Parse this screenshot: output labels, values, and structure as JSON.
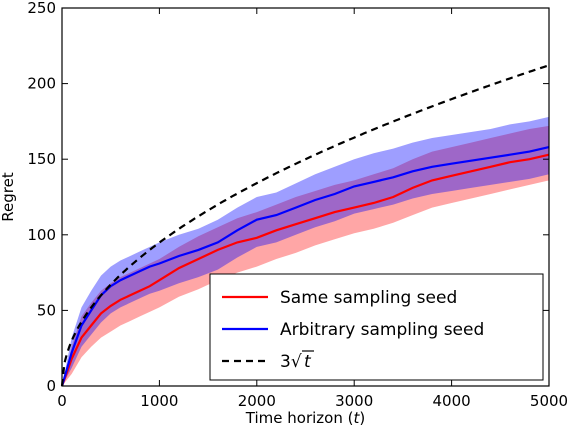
{
  "chart_data": {
    "type": "line",
    "xlabel": "Time horizon (t)",
    "ylabel": "Regret",
    "xlim": [
      0,
      5000
    ],
    "ylim": [
      0,
      250
    ],
    "xticks": [
      "0",
      "1000",
      "2000",
      "3000",
      "4000",
      "5000"
    ],
    "yticks": [
      "0",
      "50",
      "100",
      "150",
      "200",
      "250"
    ],
    "grid": false,
    "legend_position": "lower-right",
    "x": [
      0,
      100,
      200,
      300,
      400,
      500,
      600,
      700,
      800,
      900,
      1000,
      1200,
      1400,
      1600,
      1800,
      2000,
      2200,
      2400,
      2600,
      2800,
      3000,
      3200,
      3400,
      3600,
      3800,
      4000,
      4200,
      4400,
      4600,
      4800,
      5000
    ],
    "series": [
      {
        "name": "Same sampling seed",
        "color": "#ff0000",
        "style": "solid",
        "values": [
          0,
          18,
          32,
          40,
          48,
          53,
          57,
          60,
          63,
          66,
          70,
          78,
          84,
          90,
          95,
          98,
          103,
          107,
          111,
          115,
          118,
          121,
          125,
          131,
          136,
          139,
          142,
          145,
          148,
          150,
          153
        ],
        "lower": [
          0,
          8,
          19,
          26,
          32,
          36,
          40,
          43,
          46,
          49,
          52,
          59,
          64,
          70,
          75,
          79,
          84,
          88,
          93,
          97,
          101,
          104,
          108,
          113,
          118,
          121,
          124,
          127,
          130,
          133,
          136
        ],
        "upper": [
          0,
          26,
          46,
          55,
          63,
          68,
          72,
          75,
          78,
          81,
          84,
          92,
          99,
          105,
          111,
          115,
          120,
          125,
          129,
          133,
          136,
          140,
          144,
          150,
          155,
          158,
          161,
          164,
          167,
          170,
          172
        ]
      },
      {
        "name": "Arbitrary sampling seed",
        "color": "#0000ff",
        "style": "solid",
        "values": [
          0,
          22,
          40,
          50,
          60,
          66,
          70,
          73,
          76,
          79,
          81,
          86,
          90,
          95,
          103,
          110,
          113,
          118,
          123,
          127,
          132,
          135,
          138,
          142,
          145,
          147,
          149,
          151,
          153,
          155,
          158
        ],
        "lower": [
          0,
          12,
          26,
          34,
          42,
          48,
          52,
          55,
          58,
          61,
          63,
          68,
          72,
          77,
          85,
          92,
          95,
          100,
          105,
          109,
          114,
          117,
          120,
          124,
          127,
          129,
          131,
          133,
          135,
          137,
          140
        ],
        "upper": [
          0,
          32,
          52,
          63,
          73,
          79,
          83,
          86,
          89,
          92,
          95,
          100,
          104,
          110,
          118,
          125,
          128,
          134,
          140,
          145,
          150,
          154,
          157,
          161,
          164,
          166,
          168,
          170,
          173,
          175,
          178
        ]
      },
      {
        "name": "3√t",
        "color": "#000000",
        "style": "dashed",
        "function": "3*sqrt(t)"
      }
    ]
  }
}
